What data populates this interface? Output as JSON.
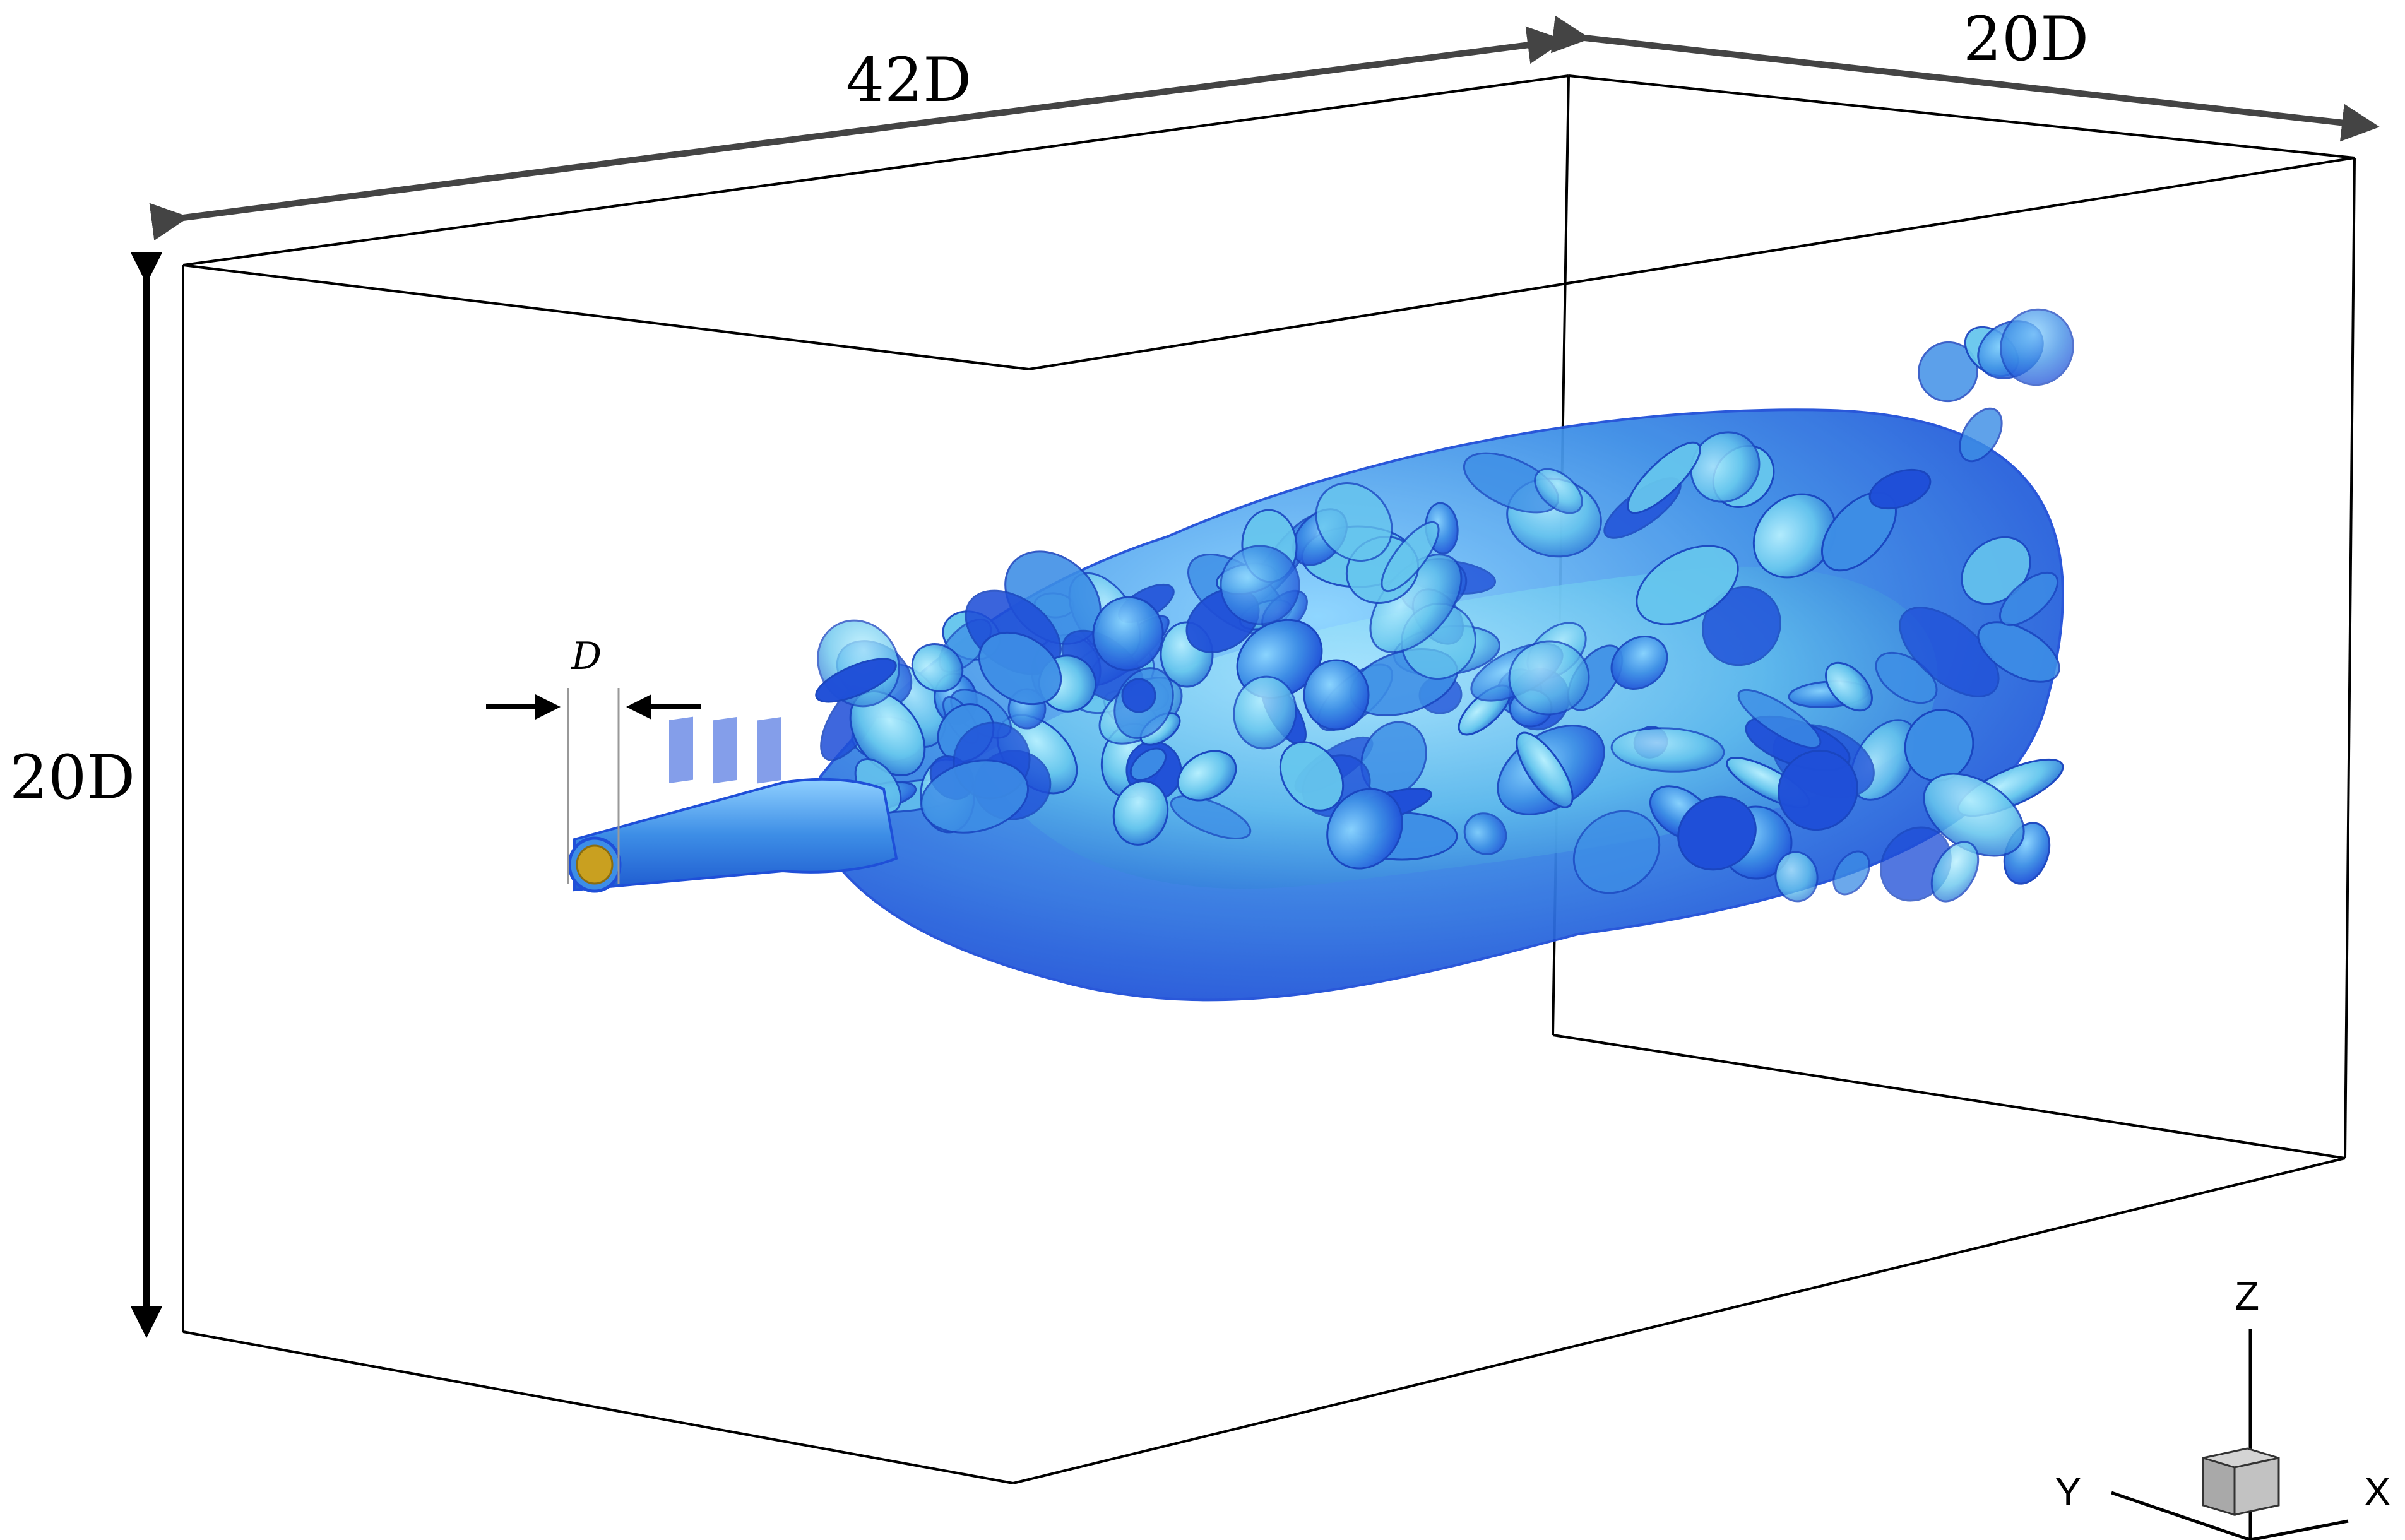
{
  "dimensions": {
    "length_label": "42D",
    "width_label": "20D",
    "height_label": "20D",
    "diameter_label": "D"
  },
  "axes_triad": {
    "z_label": "Z",
    "y_label": "Y",
    "x_label": "X"
  },
  "colors": {
    "iso_dark": "#1f4fd8",
    "iso_mid": "#3d8ee6",
    "iso_light": "#66c6ee",
    "iso_teal": "#7fe0e6",
    "nozzle_core": "#c9a020",
    "arrow_gray": "#444444",
    "cube_gray": "#a9a9a9"
  }
}
